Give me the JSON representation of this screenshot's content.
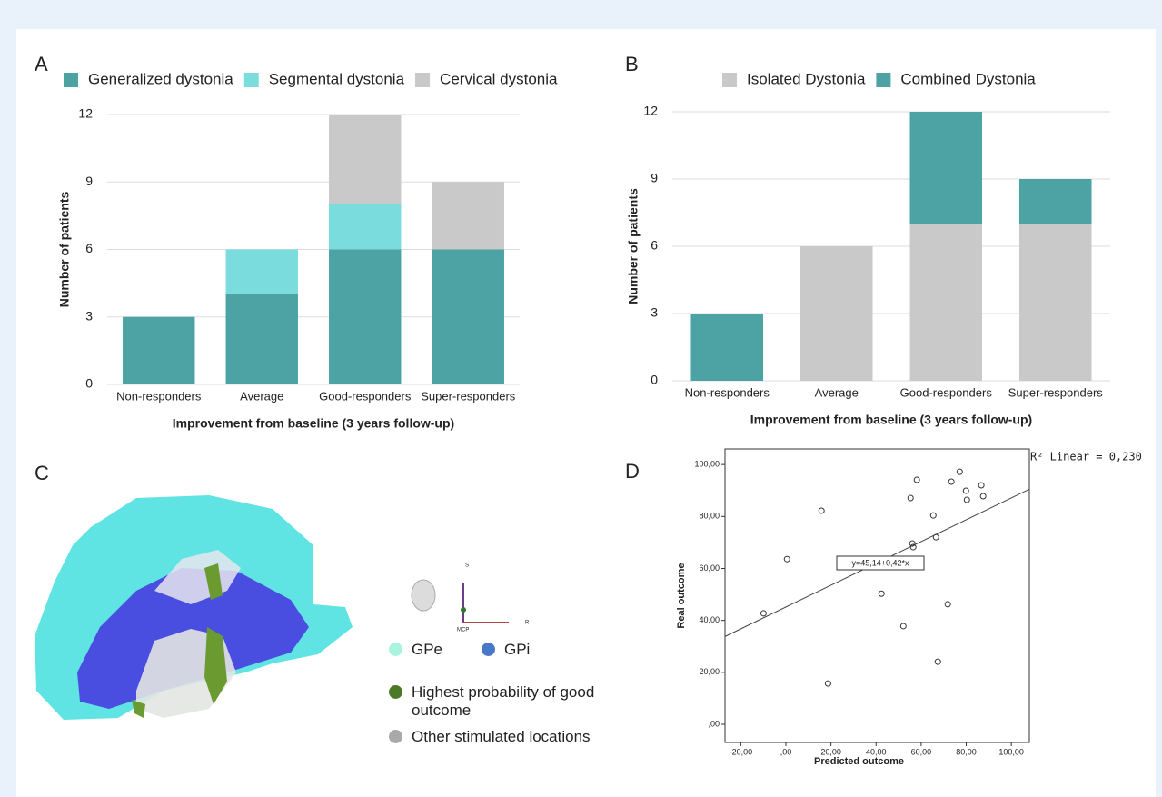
{
  "chart_data": [
    {
      "type": "stacked_bar",
      "panel_label": "A",
      "categories": [
        "Non-responders",
        "Average",
        "Good-responders",
        "Super-responders"
      ],
      "series": [
        {
          "name": "Generalized dystonia",
          "color": "#4da3a3",
          "values": [
            3,
            4,
            6,
            6
          ]
        },
        {
          "name": "Segmental dystonia",
          "color": "#7adcdc",
          "values": [
            0,
            2,
            2,
            0
          ]
        },
        {
          "name": "Cervical dystonia",
          "color": "#c9c9c9",
          "values": [
            0,
            0,
            4,
            3
          ]
        }
      ],
      "ylim": [
        0,
        12
      ],
      "yticks": [
        0,
        3,
        6,
        9,
        12
      ],
      "grid": true,
      "xlabel": "Improvement from baseline (3 years follow-up)",
      "ylabel": "Number of patients"
    },
    {
      "type": "stacked_bar",
      "panel_label": "B",
      "categories": [
        "Non-responders",
        "Average",
        "Good-responders",
        "Super-responders"
      ],
      "series": [
        {
          "name": "Isolated Dystonia",
          "color": "#c9c9c9",
          "values": [
            0,
            6,
            7,
            7
          ]
        },
        {
          "name": "Combined Dystonia",
          "color": "#4da3a3",
          "values": [
            3,
            0,
            5,
            2
          ]
        }
      ],
      "ylim": [
        0,
        12
      ],
      "yticks": [
        0,
        3,
        6,
        9,
        12
      ],
      "grid": true,
      "xlabel": "Improvement from baseline (3 years follow-up)",
      "ylabel": "Number of patients"
    },
    {
      "type": "scatter",
      "panel_label": "D",
      "x": [
        -9.9,
        0.5,
        15.8,
        18.7,
        42.4,
        52.1,
        55.3,
        58.1,
        56.1,
        56.5,
        65.4,
        66.6,
        67.4,
        71.8,
        73.4,
        77.1,
        79.9,
        80.3,
        86.7,
        87.5
      ],
      "values": [
        42.7,
        63.6,
        82.2,
        15.7,
        50.3,
        37.8,
        87.1,
        94.1,
        69.6,
        68.2,
        80.4,
        72.0,
        24.1,
        46.2,
        93.4,
        97.2,
        89.9,
        86.4,
        92.0,
        87.8
      ],
      "xlim": [
        -27,
        108
      ],
      "ylim": [
        -7,
        106
      ],
      "xticks": [
        {
          "value": -20,
          "label": "-20,00"
        },
        {
          "value": 0,
          "label": ",00"
        },
        {
          "value": 20,
          "label": "20,00"
        },
        {
          "value": 40,
          "label": "40,00"
        },
        {
          "value": 60,
          "label": "60,00"
        },
        {
          "value": 80,
          "label": "80,00"
        },
        {
          "value": 100,
          "label": "100,00"
        }
      ],
      "yticks": [
        {
          "value": 0,
          "label": ",00"
        },
        {
          "value": 20,
          "label": "20,00"
        },
        {
          "value": 40,
          "label": "40,00"
        },
        {
          "value": 60,
          "label": "60,00"
        },
        {
          "value": 80,
          "label": "80,00"
        },
        {
          "value": 100,
          "label": "100,00"
        }
      ],
      "fit": {
        "intercept": 45.14,
        "slope": 0.42,
        "label": "y=45,14+0,42*x"
      },
      "r2_label": "R² Linear = 0,230",
      "xlabel": "Predicted outcome",
      "ylabel": "Real outcome"
    }
  ],
  "illustration": {
    "panel_label": "C",
    "orientation": {
      "superior": "S",
      "origin": "MCP",
      "right": "R"
    },
    "legend": [
      {
        "label": "GPe",
        "color": "#a8f5df"
      },
      {
        "label": "GPi",
        "color": "#4a78c8"
      },
      {
        "label": "Highest probability of good outcome",
        "color": "#4a7a28"
      },
      {
        "label": "Other stimulated locations",
        "color": "#a9a9a9"
      }
    ]
  }
}
